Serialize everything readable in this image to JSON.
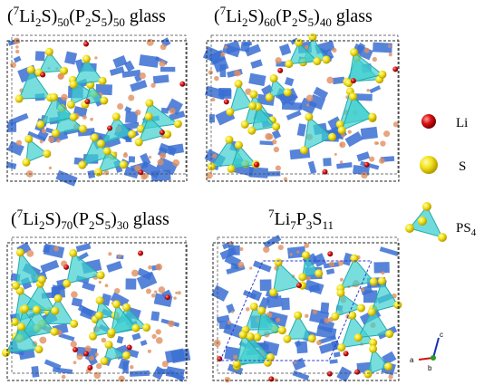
{
  "panels": [
    {
      "title": [
        "(",
        "7",
        "Li",
        "2",
        "S)",
        "50",
        "(P",
        "2",
        "S",
        "5",
        ")",
        "50",
        " glass"
      ]
    },
    {
      "title": [
        "(",
        "7",
        "Li",
        "2",
        "S)",
        "60",
        "(P",
        "2",
        "S",
        "5",
        ")",
        "40",
        " glass"
      ]
    },
    {
      "title": [
        "(",
        "7",
        "Li",
        "2",
        "S)",
        "70",
        "(P",
        "2",
        "S",
        "5",
        ")",
        "30",
        " glass"
      ]
    },
    {
      "title": [
        "7",
        "Li",
        "7",
        "P",
        "3",
        "S",
        "11"
      ]
    }
  ],
  "legend": {
    "li": "Li",
    "s": "S",
    "ps4": [
      "PS",
      "4"
    ]
  },
  "axes": {
    "a": "a",
    "b": "b",
    "c": "c"
  }
}
